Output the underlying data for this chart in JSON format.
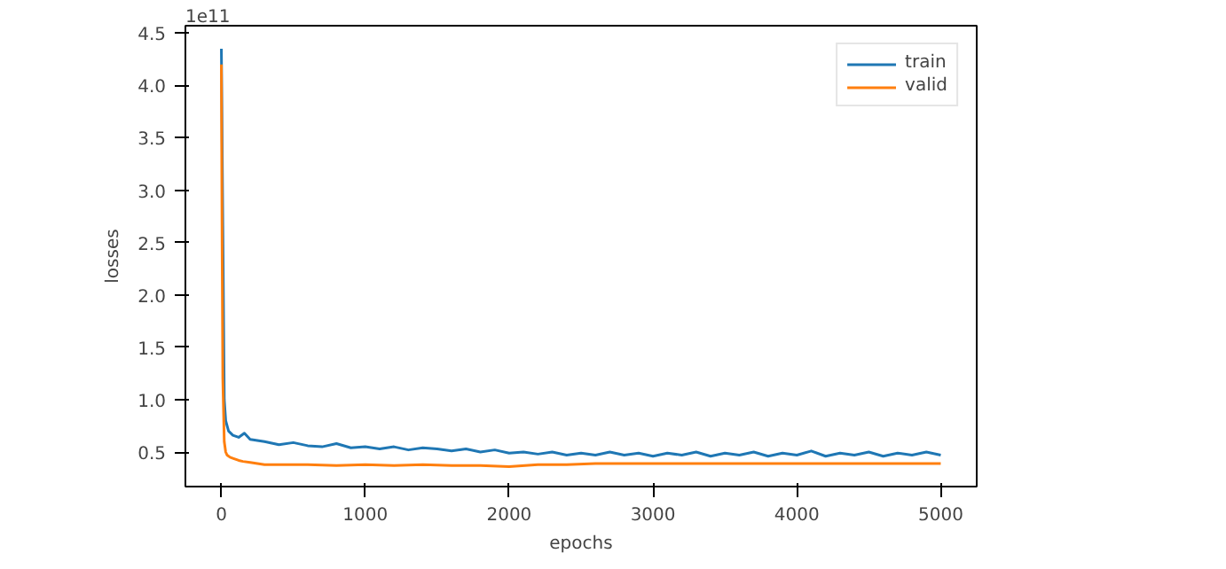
{
  "chart_data": {
    "type": "line",
    "xlabel": "epochs",
    "ylabel": "losses",
    "annotations": [
      "1e11"
    ],
    "xlim": [
      -250,
      5250
    ],
    "ylim": [
      0.17,
      4.57
    ],
    "xticks": [
      0,
      1000,
      2000,
      3000,
      4000,
      5000
    ],
    "yticks": [
      {
        "value": 0.5,
        "label": "0.5"
      },
      {
        "value": 1.0,
        "label": "1.0"
      },
      {
        "value": 1.5,
        "label": "1.5"
      },
      {
        "value": 2.0,
        "label": "2.0"
      },
      {
        "value": 2.5,
        "label": "2.5"
      },
      {
        "value": 3.0,
        "label": "3.0"
      },
      {
        "value": 3.5,
        "label": "3.5"
      },
      {
        "value": 4.0,
        "label": "4.0"
      },
      {
        "value": 4.5,
        "label": "4.5"
      }
    ],
    "legend": "top right",
    "grid": false,
    "marker": "none",
    "line_style": "solid",
    "series": [
      {
        "name": "train",
        "color": "#1f77b4",
        "x": [
          0,
          20,
          30,
          50,
          80,
          120,
          160,
          200,
          300,
          400,
          500,
          600,
          700,
          800,
          900,
          1000,
          1100,
          1200,
          1300,
          1400,
          1500,
          1600,
          1700,
          1800,
          1900,
          2000,
          2100,
          2200,
          2300,
          2400,
          2500,
          2600,
          2700,
          2800,
          2900,
          3000,
          3100,
          3200,
          3300,
          3400,
          3500,
          3600,
          3700,
          3800,
          3900,
          4000,
          4100,
          4200,
          4300,
          4400,
          4500,
          4600,
          4700,
          4800,
          4900,
          5000
        ],
        "values": [
          4.35,
          1.0,
          0.8,
          0.7,
          0.66,
          0.64,
          0.68,
          0.62,
          0.6,
          0.57,
          0.59,
          0.56,
          0.55,
          0.58,
          0.54,
          0.55,
          0.53,
          0.55,
          0.52,
          0.54,
          0.53,
          0.51,
          0.53,
          0.5,
          0.52,
          0.49,
          0.5,
          0.48,
          0.5,
          0.47,
          0.49,
          0.47,
          0.5,
          0.47,
          0.49,
          0.46,
          0.49,
          0.47,
          0.5,
          0.46,
          0.49,
          0.47,
          0.5,
          0.46,
          0.49,
          0.47,
          0.51,
          0.46,
          0.49,
          0.47,
          0.5,
          0.46,
          0.49,
          0.47,
          0.5,
          0.47
        ]
      },
      {
        "name": "valid",
        "color": "#ff7f0e",
        "x": [
          0,
          5,
          10,
          20,
          30,
          40,
          60,
          80,
          120,
          150,
          200,
          300,
          400,
          600,
          800,
          1000,
          1200,
          1400,
          1600,
          1800,
          2000,
          2200,
          2400,
          2600,
          2800,
          3000,
          3200,
          3400,
          3600,
          3800,
          4000,
          4200,
          4400,
          4600,
          4800,
          5000
        ],
        "values": [
          4.2,
          2.5,
          1.2,
          0.6,
          0.5,
          0.47,
          0.45,
          0.44,
          0.42,
          0.41,
          0.4,
          0.38,
          0.38,
          0.38,
          0.37,
          0.38,
          0.37,
          0.38,
          0.37,
          0.37,
          0.36,
          0.38,
          0.38,
          0.39,
          0.39,
          0.39,
          0.39,
          0.39,
          0.39,
          0.39,
          0.39,
          0.39,
          0.39,
          0.39,
          0.39,
          0.39
        ]
      }
    ]
  }
}
